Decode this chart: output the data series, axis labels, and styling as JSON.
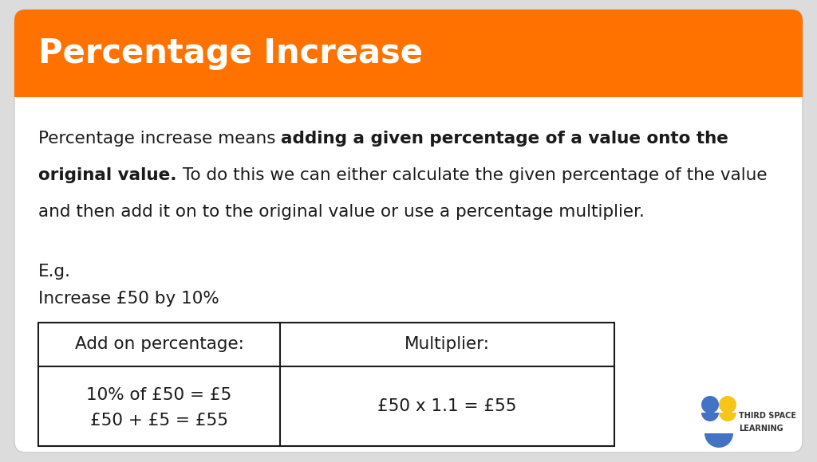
{
  "title": "Percentage Increase",
  "header_bg_color": "#FF7200",
  "header_text_color": "#FFFFFF",
  "card_bg_color": "#FFFFFF",
  "outer_bg_color": "#DCDCDC",
  "text_color": "#1a1a1a",
  "table_border_color": "#1a1a1a",
  "eg_line1": "E.g.",
  "eg_line2": "Increase £50 by 10%",
  "table_header_left": "Add on percentage:",
  "table_header_right": "Multiplier:",
  "table_cell_left_line1": "10% of £50 = £5",
  "table_cell_left_line2": "£50 + £5 = £55",
  "table_cell_right": "£50 x 1.1 = £55",
  "logo_text_1": "THIRD SPACE",
  "logo_text_2": "LEARNING",
  "figsize": [
    10.24,
    5.8
  ],
  "dpi": 100
}
